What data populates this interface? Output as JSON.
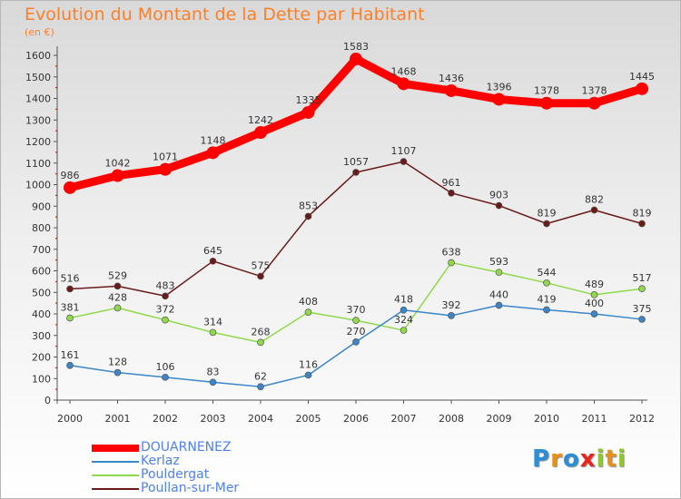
{
  "chart_data": {
    "type": "line",
    "title": "Evolution du Montant de la Dette par Habitant",
    "unit_label": "(en €)",
    "x": [
      "2000",
      "2001",
      "2002",
      "2003",
      "2004",
      "2005",
      "2006",
      "2007",
      "2008",
      "2009",
      "2010",
      "2011",
      "2012"
    ],
    "ylim": [
      0,
      1600
    ],
    "yticks": [
      0,
      100,
      200,
      300,
      400,
      500,
      600,
      700,
      800,
      900,
      1000,
      1100,
      1200,
      1300,
      1400,
      1500,
      1600
    ],
    "grid": false,
    "legend_position": "bottom-left",
    "series": [
      {
        "name": "DOUARNENEZ",
        "color": "#ff0000",
        "values": [
          986,
          1042,
          1071,
          1148,
          1242,
          1335,
          1583,
          1468,
          1436,
          1396,
          1378,
          1378,
          1445
        ]
      },
      {
        "name": "Kerlaz",
        "color": "#3b86c8",
        "values": [
          161,
          128,
          106,
          83,
          62,
          116,
          270,
          418,
          392,
          440,
          419,
          400,
          375
        ]
      },
      {
        "name": "Pouldergat",
        "color": "#8fd94a",
        "values": [
          381,
          428,
          372,
          314,
          268,
          408,
          370,
          324,
          638,
          593,
          544,
          489,
          517
        ]
      },
      {
        "name": "Poullan-sur-Mer",
        "color": "#6b1a1a",
        "values": [
          516,
          529,
          483,
          645,
          575,
          853,
          1057,
          1107,
          961,
          903,
          819,
          882,
          819
        ]
      }
    ]
  },
  "logo": {
    "letters": [
      "P",
      "r",
      "o",
      "x",
      "i",
      "t",
      "i"
    ],
    "colors": [
      "#2a8fd6",
      "#e8901a",
      "#2a8fd6",
      "#e8251a",
      "#8fc82a",
      "#e8901a",
      "#8fc82a"
    ]
  }
}
